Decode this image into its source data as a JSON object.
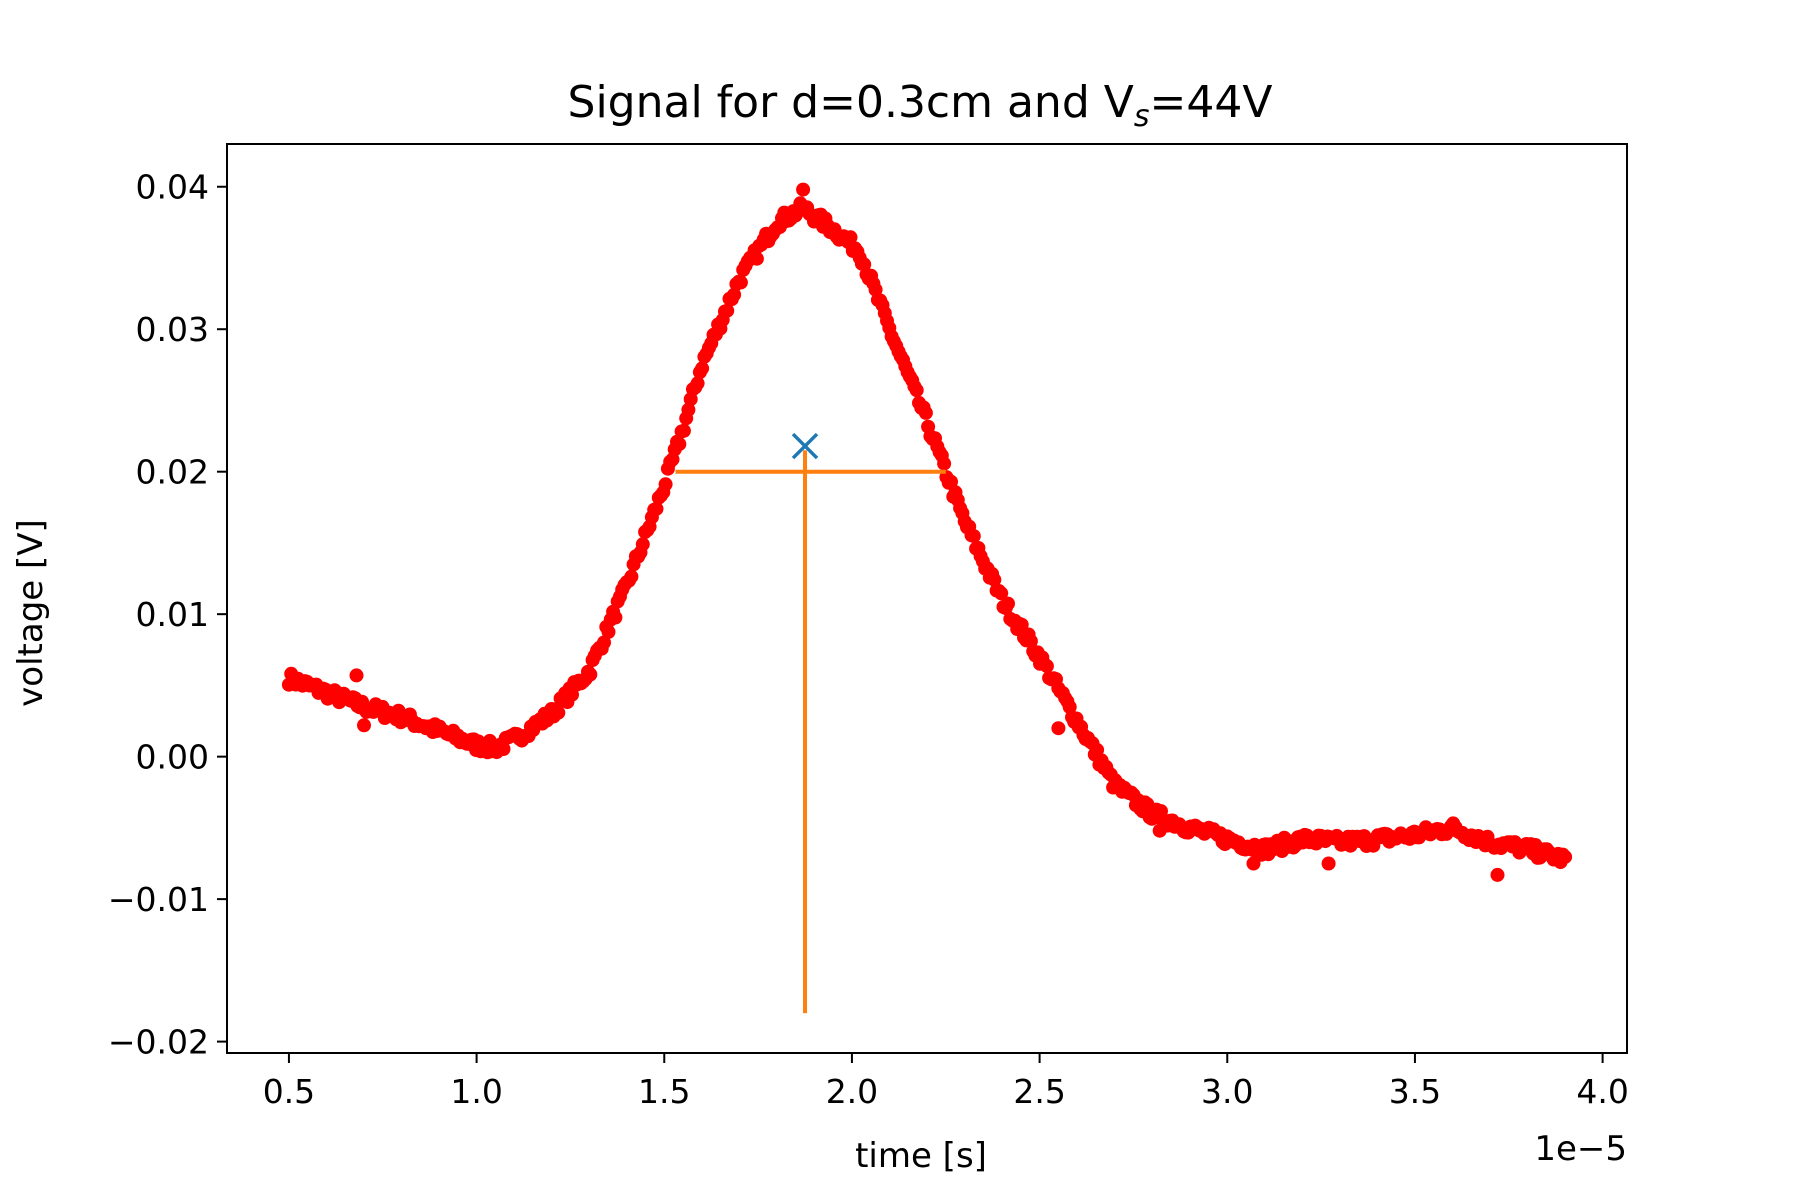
{
  "chart_data": {
    "type": "scatter",
    "title": {
      "prefix": "Signal for d=0.3cm and V",
      "subscript": "s",
      "suffix": "=44V"
    },
    "xlabel": "time [s]",
    "ylabel": "voltage [V]",
    "x_offset_text": "1e−5",
    "x_scale": 1e-05,
    "xlim": [
      0.335,
      4.065
    ],
    "ylim": [
      -0.0208,
      0.043
    ],
    "xticks": [
      0.5,
      1.0,
      1.5,
      2.0,
      2.5,
      3.0,
      3.5,
      4.0
    ],
    "xtick_labels": [
      "0.5",
      "1.0",
      "1.5",
      "2.0",
      "2.5",
      "3.0",
      "3.5",
      "4.0"
    ],
    "yticks": [
      -0.02,
      -0.01,
      0.0,
      0.01,
      0.02,
      0.03,
      0.04
    ],
    "ytick_labels": [
      "−0.02",
      "−0.01",
      "0.00",
      "0.01",
      "0.02",
      "0.03",
      "0.04"
    ],
    "grid": false,
    "series": {
      "color": "#ff0000",
      "x_range": [
        0.5,
        3.9
      ],
      "points": 560,
      "trend": [
        [
          0.5,
          0.0055
        ],
        [
          0.6,
          0.0045
        ],
        [
          0.7,
          0.0035
        ],
        [
          0.8,
          0.0028
        ],
        [
          0.9,
          0.0018
        ],
        [
          1.0,
          0.0008
        ],
        [
          1.05,
          0.0006
        ],
        [
          1.1,
          0.0012
        ],
        [
          1.2,
          0.003
        ],
        [
          1.3,
          0.006
        ],
        [
          1.4,
          0.012
        ],
        [
          1.5,
          0.019
        ],
        [
          1.55,
          0.023
        ],
        [
          1.6,
          0.0275
        ],
        [
          1.7,
          0.0335
        ],
        [
          1.8,
          0.0375
        ],
        [
          1.87,
          0.0385
        ],
        [
          1.95,
          0.037
        ],
        [
          2.02,
          0.0355
        ],
        [
          2.1,
          0.03
        ],
        [
          2.2,
          0.0235
        ],
        [
          2.25,
          0.02
        ],
        [
          2.3,
          0.0165
        ],
        [
          2.4,
          0.011
        ],
        [
          2.5,
          0.007
        ],
        [
          2.6,
          0.0025
        ],
        [
          2.7,
          -0.002
        ],
        [
          2.8,
          -0.004
        ],
        [
          2.9,
          -0.005
        ],
        [
          3.0,
          -0.0058
        ],
        [
          3.1,
          -0.0065
        ],
        [
          3.2,
          -0.0058
        ],
        [
          3.3,
          -0.006
        ],
        [
          3.4,
          -0.0058
        ],
        [
          3.5,
          -0.0055
        ],
        [
          3.6,
          -0.005
        ],
        [
          3.7,
          -0.006
        ],
        [
          3.8,
          -0.0065
        ],
        [
          3.9,
          -0.0072
        ]
      ],
      "outliers": [
        [
          0.68,
          0.0057
        ],
        [
          1.87,
          0.0398
        ],
        [
          3.72,
          -0.0083
        ],
        [
          3.27,
          -0.0075
        ],
        [
          3.07,
          -0.0075
        ],
        [
          2.82,
          -0.0052
        ],
        [
          2.55,
          0.002
        ],
        [
          0.7,
          0.0022
        ]
      ]
    },
    "fwhm_marker": {
      "color": "#ff7f0e",
      "hline": {
        "y": 0.02,
        "x_start": 1.53,
        "x_end": 2.25
      },
      "vline": {
        "x": 1.875,
        "y_start": -0.018,
        "y_end": 0.0215
      }
    },
    "peak_marker": {
      "color": "#1f77b4",
      "x": 1.875,
      "y": 0.0218,
      "symbol": "x"
    }
  }
}
